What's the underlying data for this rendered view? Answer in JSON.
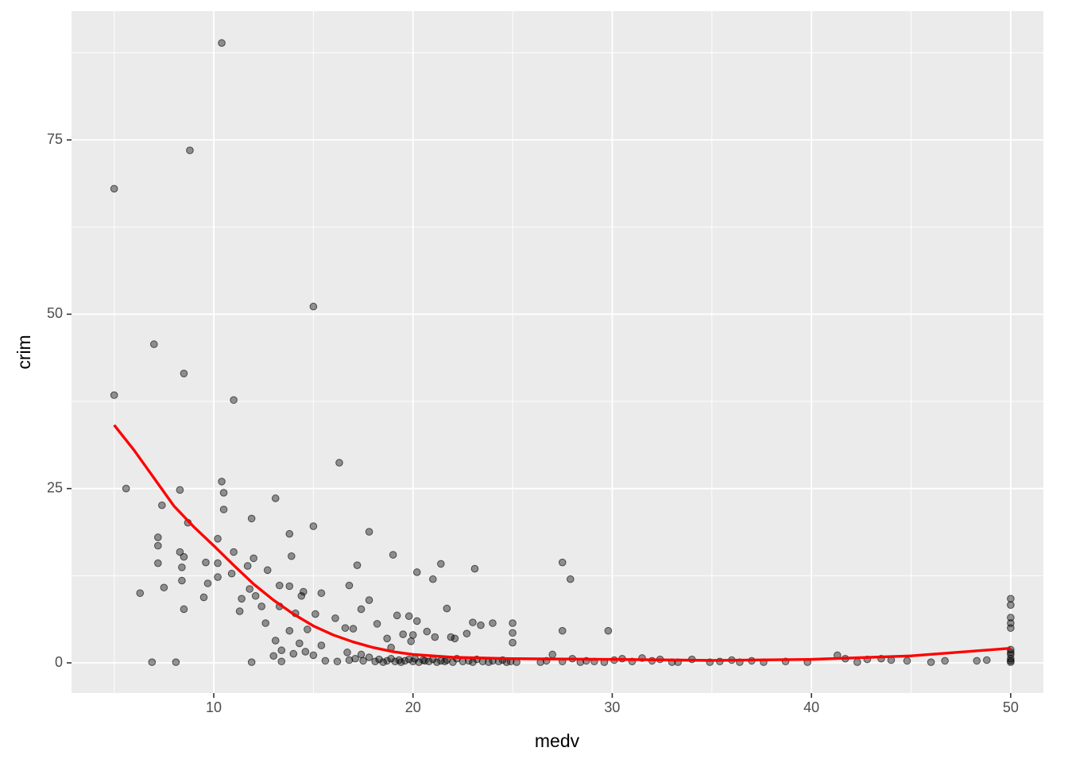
{
  "chart_data": {
    "type": "scatter",
    "xlabel": "medv",
    "ylabel": "crim",
    "xlim": [
      2.86,
      51.64
    ],
    "ylim": [
      -4.33,
      93.47
    ],
    "xticks": [
      10,
      20,
      30,
      40,
      50
    ],
    "yticks": [
      0,
      25,
      50,
      75
    ],
    "minor_xticks": [
      5,
      15,
      25,
      35,
      45
    ],
    "minor_yticks": [
      12.5,
      37.5,
      62.5,
      87.5
    ],
    "grid": true,
    "points": {
      "color": "#000000",
      "x": [
        5,
        5,
        8.8,
        10.4,
        15,
        7,
        8.5,
        11,
        16.3,
        5.6,
        10.4,
        8.3,
        10.5,
        13.1,
        7.4,
        10.5,
        11.9,
        8.7,
        15,
        17.8,
        13.8,
        7.2,
        10.2,
        7.2,
        8.3,
        11,
        19,
        8.5,
        13.9,
        12,
        7.2,
        9.6,
        10.2,
        17.2,
        21.4,
        27.5,
        23.1,
        8.4,
        11.7,
        12.7,
        20.2,
        10.9,
        10.2,
        21,
        27.9,
        8.4,
        9.7,
        13.3,
        16.8,
        13.8,
        7.5,
        11.8,
        17.8,
        6.3,
        14.5,
        15.4,
        12.1,
        9.5,
        11.4,
        16.1,
        8.5,
        11.3,
        12.4,
        13.3,
        14.4,
        17.4,
        21.7,
        14.1,
        15.1,
        12.6,
        18.2,
        19.2,
        19.8,
        20.2,
        27.5,
        29.8,
        25,
        25,
        25,
        23,
        23.4,
        24,
        16.6,
        17,
        14.7,
        13.8,
        19.5,
        20,
        20.7,
        21.1,
        21.9,
        22.1,
        22.7,
        18.7,
        19.9,
        13.1,
        14.3,
        15.4,
        18.9,
        13.4,
        14.6,
        16.7,
        17.4,
        13,
        14,
        15,
        6.9,
        8.1,
        11.9,
        13.4,
        15.6,
        16.2,
        16.8,
        17.1,
        17.5,
        17.8,
        18.1,
        18.3,
        18.5,
        18.7,
        18.9,
        19.1,
        19.3,
        19.4,
        19.6,
        19.8,
        20,
        20.1,
        20.3,
        20.5,
        20.6,
        20.8,
        21,
        21.2,
        21.4,
        21.6,
        21.7,
        22,
        22.2,
        22.5,
        22.8,
        23,
        23.2,
        23.5,
        23.8,
        24,
        24.3,
        24.5,
        24.7,
        24.9,
        25.2,
        26.4,
        26.7,
        27,
        27.5,
        28,
        28.4,
        28.7,
        29.1,
        29.6,
        30.1,
        30.5,
        31,
        31.5,
        32,
        32.4,
        33,
        33.3,
        34,
        34.9,
        35.4,
        36,
        36.4,
        37,
        37.6,
        38.7,
        39.8,
        41.3,
        41.7,
        42.3,
        42.8,
        43.5,
        44,
        44.8,
        46,
        46.7,
        48.3,
        48.8,
        50,
        50,
        50,
        50,
        50,
        50,
        50,
        50,
        50,
        50,
        50
      ],
      "values": [
        68,
        38.4,
        73.5,
        88.9,
        51.1,
        45.7,
        41.5,
        37.7,
        28.7,
        25,
        26,
        24.8,
        24.4,
        23.6,
        22.6,
        22,
        20.7,
        20.1,
        19.6,
        18.8,
        18.5,
        18,
        17.8,
        16.8,
        15.9,
        15.9,
        15.5,
        15.2,
        15.3,
        15,
        14.3,
        14.4,
        14.3,
        14,
        14.2,
        14.4,
        13.5,
        13.7,
        13.9,
        13.3,
        13,
        12.8,
        12.3,
        12,
        12,
        11.8,
        11.4,
        11.1,
        11.1,
        11,
        10.8,
        10.6,
        9,
        10,
        10.2,
        10,
        9.6,
        9.4,
        9.2,
        6.4,
        7.7,
        7.4,
        8.1,
        8.1,
        9.6,
        7.7,
        7.8,
        7.1,
        7,
        5.7,
        5.6,
        6.8,
        6.7,
        6,
        4.6,
        4.6,
        5.7,
        4.3,
        2.9,
        5.8,
        5.4,
        5.7,
        5,
        4.9,
        4.8,
        4.6,
        4.1,
        4,
        4.5,
        3.7,
        3.7,
        3.5,
        4.2,
        3.5,
        3.1,
        3.2,
        2.8,
        2.5,
        2.2,
        1.8,
        1.6,
        1.5,
        1.2,
        1,
        1.3,
        1.1,
        0.1,
        0.1,
        0.1,
        0.2,
        0.3,
        0.2,
        0.4,
        0.6,
        0.3,
        0.8,
        0.2,
        0.5,
        0.1,
        0.3,
        0.6,
        0.2,
        0.4,
        0.1,
        0.3,
        0.5,
        0.2,
        0.6,
        0.1,
        0.4,
        0.3,
        0.2,
        0.5,
        0.1,
        0.3,
        0.2,
        0.4,
        0.1,
        0.6,
        0.2,
        0.3,
        0.1,
        0.5,
        0.2,
        0.1,
        0.3,
        0.2,
        0.4,
        0.1,
        0.2,
        0.1,
        0.1,
        0.3,
        1.2,
        0.2,
        0.6,
        0.1,
        0.3,
        0.2,
        0.1,
        0.4,
        0.6,
        0.2,
        0.7,
        0.3,
        0.5,
        0.1,
        0.1,
        0.5,
        0.1,
        0.2,
        0.4,
        0.1,
        0.3,
        0.1,
        0.2,
        0.1,
        1.1,
        0.6,
        0.1,
        0.5,
        0.6,
        0.4,
        0.3,
        0.1,
        0.3,
        0.3,
        0.4,
        9.2,
        8.3,
        6.5,
        5.7,
        5,
        1.9,
        1.5,
        1.2,
        0.6,
        0.3,
        0.1
      ]
    },
    "smooth": {
      "color": "#ff0000",
      "x": [
        5,
        6,
        7,
        8,
        9,
        10,
        11,
        12,
        13,
        14,
        15,
        16,
        17,
        18,
        19,
        20,
        22,
        25,
        30,
        35,
        40,
        45,
        50
      ],
      "values": [
        34.1,
        30.5,
        26.5,
        22.5,
        19.5,
        16.8,
        14,
        11.3,
        9,
        7,
        5.3,
        4,
        3,
        2.2,
        1.6,
        1.2,
        0.8,
        0.6,
        0.5,
        0.35,
        0.5,
        1,
        2.1
      ]
    }
  }
}
